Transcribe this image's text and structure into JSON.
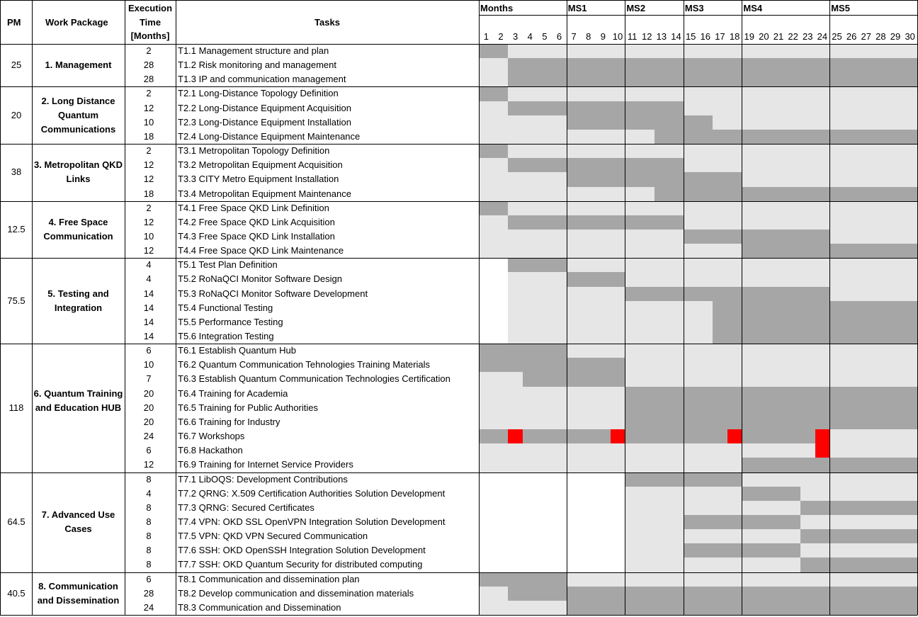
{
  "colors": {
    "active": "#a6a6a6",
    "idle": "#e6e6e6",
    "blank": "#ffffff",
    "event": "#ff0000",
    "grid": "#000000"
  },
  "header": {
    "pm": "PM",
    "work_package": "Work Package",
    "execution_time": [
      "Execution",
      "Time",
      "[Months]"
    ],
    "tasks": "Tasks",
    "months": "Months",
    "milestones": [
      {
        "label": "MS1",
        "month": 7
      },
      {
        "label": "MS2",
        "month": 11
      },
      {
        "label": "MS3",
        "month": 15
      },
      {
        "label": "MS4",
        "month": 19
      },
      {
        "label": "MS5",
        "month": 25
      }
    ],
    "month_numbers": [
      "1",
      "2",
      "3",
      "4",
      "5",
      "6",
      "7",
      "8",
      "9",
      "10",
      "11",
      "12",
      "13",
      "14",
      "15",
      "16",
      "17",
      "18",
      "19",
      "20",
      "21",
      "22",
      "23",
      "24",
      "25",
      "26",
      "27",
      "28",
      "29",
      "30"
    ]
  },
  "work_packages": [
    {
      "pm": "25",
      "title": "1. Management",
      "blank_before": 0,
      "tasks": [
        {
          "exec": "2",
          "name": "T1.1 Management structure and plan",
          "active": [
            [
              1,
              2
            ]
          ]
        },
        {
          "exec": "28",
          "name": "T1.2 Risk monitoring and management",
          "active": [
            [
              3,
              30
            ]
          ]
        },
        {
          "exec": "28",
          "name": "T1.3 IP and communication management",
          "active": [
            [
              3,
              30
            ]
          ]
        }
      ]
    },
    {
      "pm": "20",
      "title": "2. Long Distance Quantum Communications",
      "blank_before": 0,
      "tasks": [
        {
          "exec": "2",
          "name": "T2.1 Long-Distance Topology Definition",
          "active": [
            [
              1,
              2
            ]
          ]
        },
        {
          "exec": "12",
          "name": "T2.2 Long-Distance Equipment Acquisition",
          "active": [
            [
              3,
              14
            ]
          ]
        },
        {
          "exec": "10",
          "name": "T2.3 Long-Distance Equipment Installation",
          "active": [
            [
              7,
              16
            ]
          ]
        },
        {
          "exec": "18",
          "name": "T2.4 Long-Distance Equipment Maintenance",
          "active": [
            [
              13,
              30
            ]
          ]
        }
      ]
    },
    {
      "pm": "38",
      "title": "3. Metropolitan QKD Links",
      "blank_before": 0,
      "tasks": [
        {
          "exec": "2",
          "name": "T3.1 Metropolitan Topology Definition",
          "active": [
            [
              1,
              2
            ]
          ]
        },
        {
          "exec": "12",
          "name": "T3.2 Metropolitan Equipment Acquisition",
          "active": [
            [
              3,
              14
            ]
          ]
        },
        {
          "exec": "12",
          "name": "T3.3 CITY Metro Equipment Installation",
          "active": [
            [
              7,
              18
            ]
          ]
        },
        {
          "exec": "18",
          "name": "T3.4 Metropolitan Equipment Maintenance",
          "active": [
            [
              13,
              30
            ]
          ]
        }
      ]
    },
    {
      "pm": "12.5",
      "title": "4. Free Space Communication",
      "blank_before": 0,
      "tasks": [
        {
          "exec": "2",
          "name": "T4.1 Free Space QKD Link Definition",
          "active": [
            [
              1,
              2
            ]
          ]
        },
        {
          "exec": "12",
          "name": "T4.2 Free Space QKD Link Acquisition",
          "active": [
            [
              3,
              14
            ]
          ]
        },
        {
          "exec": "10",
          "name": "T4.3 Free Space QKD Link Installation",
          "active": [
            [
              15,
              24
            ]
          ]
        },
        {
          "exec": "12",
          "name": "T4.4 Free Space QKD Link Maintenance",
          "active": [
            [
              19,
              30
            ]
          ]
        }
      ]
    },
    {
      "pm": "75.5",
      "title": "5. Testing and Integration",
      "blank_before": 2,
      "tasks": [
        {
          "exec": "4",
          "name": "T5.1 Test Plan Definition",
          "active": [
            [
              3,
              6
            ]
          ]
        },
        {
          "exec": "4",
          "name": "T5.2 RoNaQCI Monitor Software Design",
          "active": [
            [
              7,
              10
            ]
          ]
        },
        {
          "exec": "14",
          "name": "T5.3 RoNaQCI Monitor Software Development",
          "active": [
            [
              11,
              24
            ]
          ]
        },
        {
          "exec": "14",
          "name": "T5.4 Functional Testing",
          "active": [
            [
              17,
              30
            ]
          ]
        },
        {
          "exec": "14",
          "name": "T5.5 Performance Testing",
          "active": [
            [
              17,
              30
            ]
          ]
        },
        {
          "exec": "14",
          "name": "T5.6 Integration Testing",
          "active": [
            [
              17,
              30
            ]
          ]
        }
      ]
    },
    {
      "pm": "118",
      "title": "6. Quantum Training and Education HUB",
      "blank_before": 0,
      "tasks": [
        {
          "exec": "6",
          "name": "T6.1 Establish Quantum Hub",
          "active": [
            [
              1,
              6
            ]
          ]
        },
        {
          "exec": "10",
          "name": "T6.2 Quantum Communication Tehnologies Training Materials",
          "active": [
            [
              1,
              10
            ]
          ]
        },
        {
          "exec": "7",
          "name": "T6.3 Establish Quantum Communication Technologies Certification",
          "active": [
            [
              4,
              10
            ]
          ]
        },
        {
          "exec": "20",
          "name": "T6.4 Training for Academia",
          "active": [
            [
              11,
              30
            ]
          ]
        },
        {
          "exec": "20",
          "name": "T6.5 Training for Public Authorities",
          "active": [
            [
              11,
              30
            ]
          ]
        },
        {
          "exec": "20",
          "name": "T6.6 Training for Industry",
          "active": [
            [
              11,
              30
            ]
          ]
        },
        {
          "exec": "24",
          "name": "T6.7 Workshops",
          "active": [
            [
              1,
              24
            ]
          ],
          "events": [
            3,
            10,
            18,
            24
          ]
        },
        {
          "exec": "6",
          "name": "T6.8 Hackathon",
          "active": [],
          "events": [
            24
          ]
        },
        {
          "exec": "12",
          "name": "T6.9 Training for Internet Service Providers",
          "active": [
            [
              19,
              30
            ]
          ]
        }
      ]
    },
    {
      "pm": "64.5",
      "title": "7. Advanced Use Cases",
      "blank_before": 10,
      "tasks": [
        {
          "exec": "8",
          "name": "T7.1 LibOQS: Development Contributions",
          "active": [
            [
              11,
              18
            ]
          ]
        },
        {
          "exec": "4",
          "name": "T7.2 QRNG: X.509 Certification Authorities Solution Development",
          "active": [
            [
              19,
              22
            ]
          ]
        },
        {
          "exec": "8",
          "name": "T7.3 QRNG: Secured Certificates",
          "active": [
            [
              23,
              30
            ]
          ]
        },
        {
          "exec": "8",
          "name": "T7.4 VPN: OKD SSL OpenVPN Integration Solution Development",
          "active": [
            [
              15,
              22
            ]
          ]
        },
        {
          "exec": "8",
          "name": "T7.5 VPN: QKD VPN Secured Communication",
          "active": [
            [
              23,
              30
            ]
          ]
        },
        {
          "exec": "8",
          "name": "T7.6 SSH: OKD OpenSSH Integration Solution Development",
          "active": [
            [
              15,
              22
            ]
          ]
        },
        {
          "exec": "8",
          "name": "T7.7 SSH: OKD Quantum Security for distributed computing",
          "active": [
            [
              23,
              30
            ]
          ]
        }
      ]
    },
    {
      "pm": "40.5",
      "title": "8. Communication and Dissemination",
      "blank_before": 0,
      "tasks": [
        {
          "exec": "6",
          "name": "T8.1 Communication and dissemination plan",
          "active": [
            [
              1,
              6
            ]
          ]
        },
        {
          "exec": "28",
          "name": "T8.2 Develop communication and dissemination materials",
          "active": [
            [
              3,
              30
            ]
          ]
        },
        {
          "exec": "24",
          "name": "T8.3 Communication and Dissemination",
          "active": [
            [
              7,
              30
            ]
          ]
        }
      ]
    }
  ]
}
